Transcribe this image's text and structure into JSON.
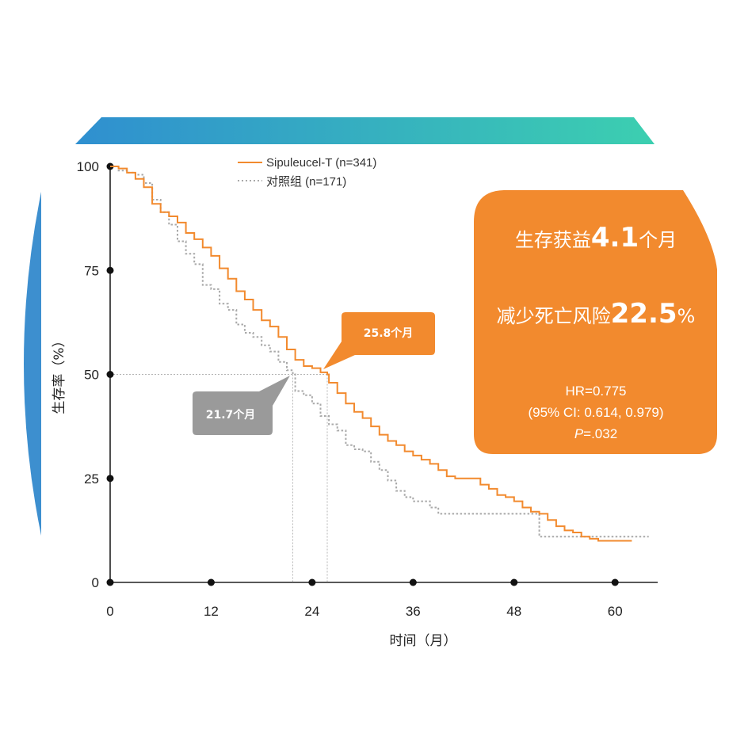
{
  "chart_data": {
    "type": "line",
    "xlabel": "时间（月）",
    "ylabel": "生存率（%）",
    "xlim": [
      0,
      65
    ],
    "ylim": [
      0,
      100
    ],
    "x_ticks": [
      0,
      12,
      24,
      36,
      48,
      60
    ],
    "y_ticks": [
      0,
      25,
      50,
      75,
      100
    ],
    "legend_position": "top-center",
    "series": [
      {
        "name": "Sipuleucel-T (n=341)",
        "color": "#f28a2e",
        "style": "solid",
        "x": [
          0,
          1,
          2,
          3,
          4,
          5,
          6,
          7,
          8,
          9,
          10,
          11,
          12,
          13,
          14,
          15,
          16,
          17,
          18,
          19,
          20,
          21,
          22,
          23,
          24,
          25,
          25.8,
          26,
          27,
          28,
          29,
          30,
          31,
          32,
          33,
          34,
          35,
          36,
          37,
          38,
          39,
          40,
          41,
          42,
          43,
          44,
          45,
          46,
          47,
          48,
          49,
          50,
          51,
          52,
          53,
          54,
          55,
          56,
          57,
          58,
          59,
          60,
          61,
          62
        ],
        "y": [
          100,
          99.5,
          98.5,
          97,
          95,
          91,
          89,
          88,
          86.5,
          84,
          82.5,
          80.5,
          78.5,
          75.5,
          73,
          70,
          68,
          65.5,
          63,
          61.5,
          59,
          56,
          53.5,
          52,
          51.5,
          50.5,
          50,
          48,
          45.5,
          43,
          41,
          39.5,
          37.5,
          35.5,
          34,
          33,
          31.5,
          30.5,
          29.5,
          28.5,
          27,
          25.5,
          25,
          25,
          25,
          23.5,
          22.5,
          21,
          20.5,
          19.5,
          18,
          17,
          16.5,
          15,
          13.5,
          12.5,
          12,
          11,
          10.5,
          10,
          10,
          10,
          10,
          10
        ]
      },
      {
        "name": "对照组 (n=171)",
        "color": "#a9a9a9",
        "style": "dotted",
        "x": [
          0,
          1,
          2,
          3,
          4,
          5,
          6,
          7,
          8,
          9,
          10,
          11,
          12,
          13,
          14,
          15,
          16,
          17,
          18,
          19,
          20,
          21,
          21.7,
          22,
          23,
          24,
          25,
          26,
          27,
          28,
          29,
          30,
          31,
          32,
          33,
          34,
          35,
          36,
          37,
          38,
          39,
          40,
          41,
          42,
          43,
          44,
          45,
          46,
          47,
          48,
          49,
          50,
          51,
          52,
          53,
          54,
          55,
          56,
          57,
          58,
          59,
          60,
          61,
          62,
          63,
          64
        ],
        "y": [
          100,
          99,
          98.5,
          98,
          96,
          92,
          89,
          86,
          82,
          79,
          76.5,
          71.5,
          70.5,
          67,
          65.5,
          62,
          60,
          59,
          57,
          55.5,
          53,
          51,
          50,
          46,
          45,
          43,
          40,
          38,
          36.5,
          33,
          32,
          31.5,
          29,
          27,
          24.5,
          22,
          20.5,
          19.5,
          19.5,
          18,
          16.5,
          16.5,
          16.5,
          16.5,
          16.5,
          16.5,
          16.5,
          16.5,
          16.5,
          16.5,
          16.5,
          16.5,
          11,
          11,
          11,
          11,
          11,
          11,
          11,
          11,
          11,
          11,
          11,
          11,
          11,
          11
        ]
      }
    ],
    "annotations": [
      {
        "text": "25.8个月",
        "x": 25.8,
        "y": 50,
        "series": 0
      },
      {
        "text": "21.7个月",
        "x": 21.7,
        "y": 50,
        "series": 1
      }
    ]
  },
  "stats_box": {
    "benefit_prefix": "生存获益",
    "benefit_value": "4.1",
    "benefit_suffix": "个月",
    "risk_prefix": "减少死亡风险",
    "risk_value": "22.5",
    "risk_suffix": "%",
    "hr": "HR=0.775",
    "ci": "(95% CI: 0.614, 0.979)",
    "p_symbol": "P",
    "p_value": "=.032"
  },
  "colors": {
    "orange": "#f28a2e",
    "gray_callout": "#9a9a9a",
    "banner_start": "#2f8fd0",
    "banner_end": "#3ccfb0",
    "side_arc": "#3d8fcf"
  }
}
